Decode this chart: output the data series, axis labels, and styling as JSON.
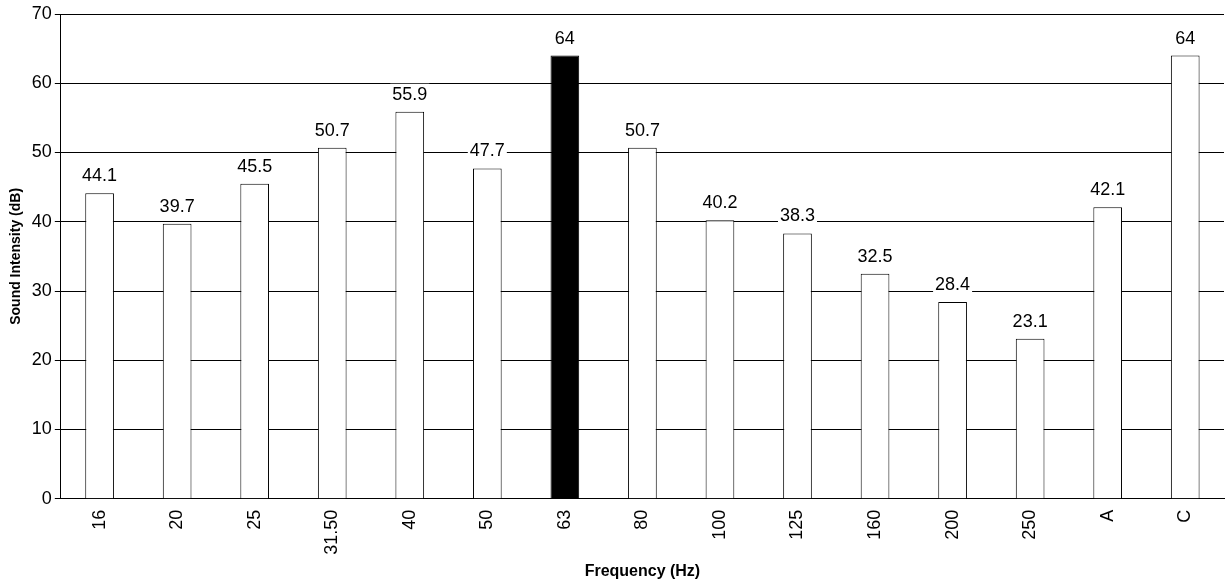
{
  "chart_data": {
    "type": "bar",
    "xlabel": "Frequency (Hz)",
    "ylabel": "Sound Intensity (dB)",
    "categories": [
      "16",
      "20",
      "25",
      "31.50",
      "40",
      "50",
      "63",
      "80",
      "100",
      "125",
      "160",
      "200",
      "250",
      "A",
      "C"
    ],
    "values": [
      44.1,
      39.7,
      45.5,
      50.7,
      55.9,
      47.7,
      64,
      50.7,
      40.2,
      38.3,
      32.5,
      28.4,
      23.1,
      42.1,
      64
    ],
    "colors": [
      "#ffffff",
      "#ffffff",
      "#ffffff",
      "#ffffff",
      "#ffffff",
      "#ffffff",
      "#000000",
      "#ffffff",
      "#ffffff",
      "#ffffff",
      "#ffffff",
      "#ffffff",
      "#ffffff",
      "#ffffff",
      "#ffffff"
    ],
    "ylim": [
      0,
      70
    ],
    "yticks": [
      0,
      10,
      20,
      30,
      40,
      50,
      60,
      70
    ],
    "grid": "y",
    "data_labels": true
  }
}
